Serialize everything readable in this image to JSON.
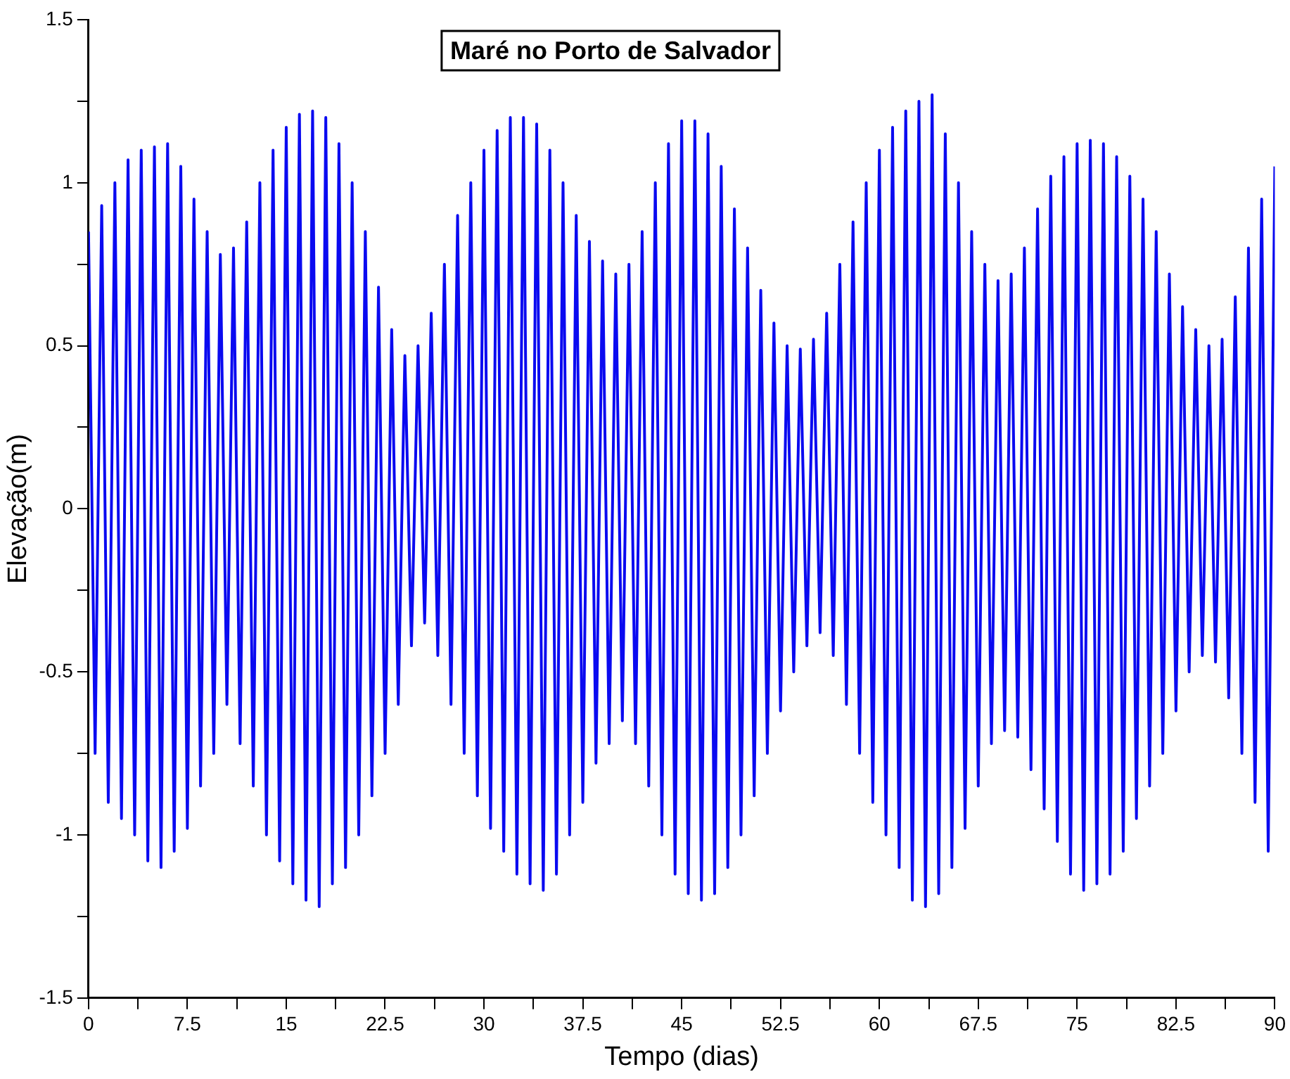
{
  "chart_data": {
    "type": "line",
    "title": "Maré no Porto de Salvador",
    "xlabel": "Tempo (dias)",
    "ylabel": "Elevação(m)",
    "xlim": [
      0,
      90
    ],
    "xticks": [
      0,
      {
        "value": 3.75,
        "label": null
      },
      7.5,
      {
        "value": 11.25,
        "label": null
      },
      15,
      {
        "value": 18.75,
        "label": null
      },
      22.5,
      {
        "value": 26.25,
        "label": null
      },
      30,
      {
        "value": 33.75,
        "label": null
      },
      37.5,
      {
        "value": 41.25,
        "label": null
      },
      45,
      {
        "value": 48.75,
        "label": null
      },
      52.5,
      {
        "value": 56.25,
        "label": null
      },
      60,
      {
        "value": 63.75,
        "label": null
      },
      67.5,
      {
        "value": 71.25,
        "label": null
      },
      75,
      {
        "value": 78.75,
        "label": null
      },
      82.5,
      {
        "value": 86.25,
        "label": null
      },
      90
    ],
    "ylim": [
      -1.5,
      1.5
    ],
    "yticks": [
      -1.5,
      {
        "value": -1.25,
        "label": null
      },
      -1,
      {
        "value": -0.75,
        "label": null
      },
      -0.5,
      {
        "value": -0.25,
        "label": null
      },
      0,
      {
        "value": 0.25,
        "label": null
      },
      0.5,
      {
        "value": 0.75,
        "label": null
      },
      1,
      {
        "value": 1.25,
        "label": null
      },
      1.5
    ],
    "grid": false,
    "legend": false,
    "marker": "none",
    "line_style": "solid",
    "series": [
      {
        "color": "#0a0af0",
        "x": [
          0,
          0.5,
          1,
          1.5,
          2,
          2.5,
          3,
          3.5,
          4,
          4.5,
          5,
          5.5,
          6,
          6.5,
          7,
          7.5,
          8,
          8.5,
          9,
          9.5,
          10,
          10.5,
          11,
          11.5,
          12,
          12.5,
          13,
          13.5,
          14,
          14.5,
          15,
          15.5,
          16,
          16.5,
          17,
          17.5,
          18,
          18.5,
          19,
          19.5,
          20,
          20.5,
          21,
          21.5,
          22,
          22.5,
          23,
          23.5,
          24,
          24.5,
          25,
          25.5,
          26,
          26.5,
          27,
          27.5,
          28,
          28.5,
          29,
          29.5,
          30,
          30.5,
          31,
          31.5,
          32,
          32.5,
          33,
          33.5,
          34,
          34.5,
          35,
          35.5,
          36,
          36.5,
          37,
          37.5,
          38,
          38.5,
          39,
          39.5,
          40,
          40.5,
          41,
          41.5,
          42,
          42.5,
          43,
          43.5,
          44,
          44.5,
          45,
          45.5,
          46,
          46.5,
          47,
          47.5,
          48,
          48.5,
          49,
          49.5,
          50,
          50.5,
          51,
          51.5,
          52,
          52.5,
          53,
          53.5,
          54,
          54.5,
          55,
          55.5,
          56,
          56.5,
          57,
          57.5,
          58,
          58.5,
          59,
          59.5,
          60,
          60.5,
          61,
          61.5,
          62,
          62.5,
          63,
          63.5,
          64,
          64.5,
          65,
          65.5,
          66,
          66.5,
          67,
          67.5,
          68,
          68.5,
          69,
          69.5,
          70,
          70.5,
          71,
          71.5,
          72,
          72.5,
          73,
          73.5,
          74,
          74.5,
          75,
          75.5,
          76,
          76.5,
          77,
          77.5,
          78,
          78.5,
          79,
          79.5,
          80,
          80.5,
          81,
          81.5,
          82,
          82.5,
          83,
          83.5,
          84,
          84.5,
          85,
          85.5,
          86,
          86.5,
          87,
          87.5,
          88,
          88.5,
          89,
          89.5,
          90
        ],
        "values": [
          0.85,
          -0.75,
          0.93,
          -0.9,
          1.0,
          -0.95,
          1.07,
          -1.0,
          1.1,
          -1.08,
          1.11,
          -1.1,
          1.12,
          -1.05,
          1.05,
          -0.98,
          0.95,
          -0.85,
          0.85,
          -0.75,
          0.78,
          -0.6,
          0.8,
          -0.72,
          0.88,
          -0.85,
          1.0,
          -1.0,
          1.1,
          -1.08,
          1.17,
          -1.15,
          1.21,
          -1.2,
          1.22,
          -1.22,
          1.2,
          -1.15,
          1.12,
          -1.1,
          1.0,
          -1.0,
          0.85,
          -0.88,
          0.68,
          -0.75,
          0.55,
          -0.6,
          0.47,
          -0.42,
          0.5,
          -0.35,
          0.6,
          -0.45,
          0.75,
          -0.6,
          0.9,
          -0.75,
          1.0,
          -0.88,
          1.1,
          -0.98,
          1.16,
          -1.05,
          1.2,
          -1.12,
          1.2,
          -1.15,
          1.18,
          -1.17,
          1.1,
          -1.12,
          1.0,
          -1.0,
          0.9,
          -0.9,
          0.82,
          -0.78,
          0.76,
          -0.72,
          0.72,
          -0.65,
          0.75,
          -0.72,
          0.85,
          -0.85,
          1.0,
          -1.0,
          1.12,
          -1.12,
          1.19,
          -1.18,
          1.19,
          -1.2,
          1.15,
          -1.18,
          1.05,
          -1.1,
          0.92,
          -1.0,
          0.8,
          -0.88,
          0.67,
          -0.75,
          0.57,
          -0.62,
          0.5,
          -0.5,
          0.49,
          -0.42,
          0.52,
          -0.38,
          0.6,
          -0.45,
          0.75,
          -0.6,
          0.88,
          -0.75,
          1.0,
          -0.9,
          1.1,
          -1.0,
          1.17,
          -1.1,
          1.22,
          -1.2,
          1.25,
          -1.22,
          1.27,
          -1.18,
          1.15,
          -1.1,
          1.0,
          -0.98,
          0.85,
          -0.85,
          0.75,
          -0.72,
          0.7,
          -0.68,
          0.72,
          -0.7,
          0.8,
          -0.8,
          0.92,
          -0.92,
          1.02,
          -1.02,
          1.08,
          -1.12,
          1.12,
          -1.17,
          1.13,
          -1.15,
          1.12,
          -1.12,
          1.08,
          -1.05,
          1.02,
          -0.95,
          0.95,
          -0.85,
          0.85,
          -0.75,
          0.72,
          -0.62,
          0.62,
          -0.5,
          0.55,
          -0.45,
          0.5,
          -0.47,
          0.52,
          -0.58,
          0.65,
          -0.75,
          0.8,
          -0.9,
          0.95,
          -1.05,
          1.05
        ]
      }
    ]
  }
}
